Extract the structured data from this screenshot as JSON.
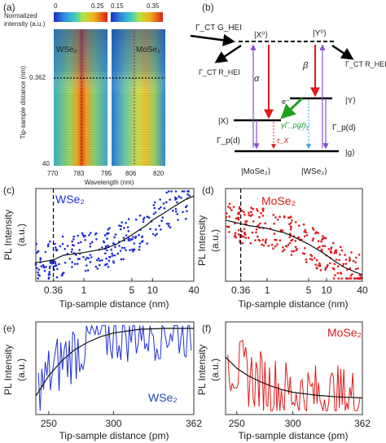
{
  "panel_letters": {
    "a": "(a)",
    "b": "(b)",
    "c": "(c)",
    "d": "(d)",
    "e": "(e)",
    "f": "(f)"
  },
  "chart_data": [
    {
      "type": "heatmap",
      "panel": "(a)",
      "colorbar_label": "Normalized intensity (a.u.)",
      "colorbars": [
        {
          "min": "0",
          "max": "0.25",
          "min_value": 0,
          "max_value": 0.25
        },
        {
          "min": "0.15",
          "max": "0.35",
          "min_value": 0.15,
          "max_value": 0.35
        }
      ],
      "ylabel": "Tip-sample distance (nm)",
      "xlabel": "Wavelength (nm)",
      "yticks": [
        "40",
        "0.362"
      ],
      "left_map": {
        "label": "WSe₂",
        "xticks": [
          "770",
          "783",
          "795"
        ],
        "xlim": [
          770,
          795
        ],
        "peak": 783
      },
      "right_map": {
        "label": "MoSe₂",
        "xticks": [
          "800",
          "806",
          "820"
        ],
        "xlim": [
          795,
          820
        ],
        "peak": 806
      },
      "annotation": "dotted line at 0.362 nm"
    },
    {
      "type": "diagram",
      "panel": "(b)",
      "labels": {
        "gamma_ct_g": "Γ_CT G_HEI",
        "gamma_ct_r_left": "Γ_CT R_HEI",
        "gamma_ct_r_right": "Γ_CT R_HEI",
        "x0": "|X⁰⟩",
        "y0": "|Y⁰⟩",
        "x": "|X⟩",
        "y": "|Y⟩",
        "g": "|g⟩",
        "alpha": "α",
        "beta": "β",
        "electron": "e⁻",
        "transfer": "γΓ_p(d)",
        "tau_x": "τ_X",
        "tau_y": "τ_Y",
        "gp_left": "Γ_p(d)",
        "gp_right": "Γ_p(d)",
        "mose2": "|MoSe₂⟩",
        "wse2": "|WSe₂⟩"
      }
    },
    {
      "type": "scatter",
      "panel": "(c)",
      "series": [
        {
          "name": "WSe₂",
          "color": "#1f2fd6"
        }
      ],
      "xlabel": "Tip-sample distance (nm)",
      "ylabel": "PL Intensity (a.u.)",
      "xscale": "log",
      "xlim": [
        0.2,
        40
      ],
      "xticks": [
        "0.36",
        "1",
        "5",
        "10",
        "40"
      ],
      "xtick_values": [
        0.36,
        1,
        5,
        10,
        40
      ],
      "vline": 0.36,
      "ylim": [
        0,
        1
      ],
      "fit": {
        "x": [
          0.2,
          0.36,
          0.5,
          1,
          2,
          3,
          5,
          8,
          10,
          15,
          20,
          30,
          40
        ],
        "y": [
          0.2,
          0.23,
          0.28,
          0.31,
          0.35,
          0.4,
          0.5,
          0.6,
          0.66,
          0.74,
          0.8,
          0.88,
          0.92
        ]
      }
    },
    {
      "type": "scatter",
      "panel": "(d)",
      "series": [
        {
          "name": "MoSe₂",
          "color": "#e01818"
        }
      ],
      "xlabel": "Tip-sample distance (nm)",
      "ylabel": "PL Intensity (a.u.)",
      "xscale": "log",
      "xlim": [
        0.2,
        40
      ],
      "xticks": [
        "0.36",
        "1",
        "5",
        "10",
        "40"
      ],
      "xtick_values": [
        0.36,
        1,
        5,
        10,
        40
      ],
      "vline": 0.36,
      "ylim": [
        0,
        1
      ],
      "fit": {
        "x": [
          0.2,
          0.36,
          0.5,
          1,
          2,
          3,
          5,
          8,
          10,
          15,
          20,
          30,
          40
        ],
        "y": [
          0.66,
          0.62,
          0.6,
          0.57,
          0.52,
          0.47,
          0.4,
          0.32,
          0.28,
          0.2,
          0.15,
          0.1,
          0.07
        ]
      }
    },
    {
      "type": "line",
      "panel": "(e)",
      "series": [
        {
          "name": "WSe₂",
          "color": "#1f2fd6"
        }
      ],
      "xlabel": "Tip-sample distance (pm)",
      "ylabel": "PL Intensity (a.u.)",
      "xlim": [
        240,
        362
      ],
      "xticks": [
        "250",
        "300",
        "362"
      ],
      "xtick_values": [
        250,
        300,
        362
      ],
      "ylim": [
        0,
        1
      ],
      "fit": {
        "x": [
          240,
          250,
          260,
          270,
          280,
          290,
          300,
          320,
          340,
          362
        ],
        "y": [
          0.2,
          0.42,
          0.58,
          0.7,
          0.78,
          0.84,
          0.88,
          0.92,
          0.93,
          0.93
        ]
      }
    },
    {
      "type": "line",
      "panel": "(f)",
      "series": [
        {
          "name": "MoSe₂",
          "color": "#e01818"
        }
      ],
      "xlabel": "Tip-sample distance (pm)",
      "ylabel": "PL Intensity (a.u.)",
      "xlim": [
        240,
        362
      ],
      "xticks": [
        "250",
        "300",
        "362"
      ],
      "xtick_values": [
        250,
        300,
        362
      ],
      "ylim": [
        0,
        1
      ],
      "fit": {
        "x": [
          240,
          250,
          260,
          270,
          280,
          290,
          300,
          320,
          340,
          362
        ],
        "y": [
          0.62,
          0.5,
          0.42,
          0.36,
          0.31,
          0.27,
          0.24,
          0.21,
          0.19,
          0.18
        ]
      }
    }
  ]
}
